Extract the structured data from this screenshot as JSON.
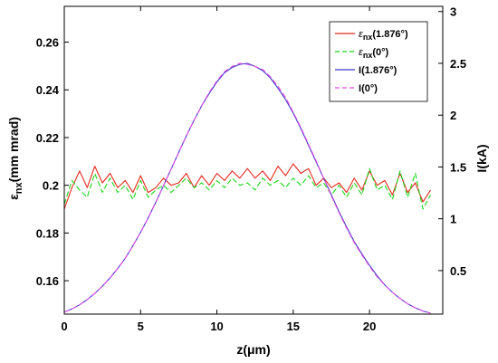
{
  "chart_data": {
    "type": "line",
    "xlabel": "z(μm)",
    "ylabel_left": "εnx(mm mrad)",
    "ylabel_right": "I(kA)",
    "xlim": [
      0,
      24.8
    ],
    "ylim_left": [
      0.146,
      0.275
    ],
    "ylim_right": [
      0.08,
      3.05
    ],
    "x_ticks": [
      "0",
      "5",
      "10",
      "15",
      "20"
    ],
    "y_left_ticks": [
      "0.16",
      "0.18",
      "0.2",
      "0.22",
      "0.24",
      "0.26"
    ],
    "y_right_ticks": [
      "0.5",
      "1",
      "1.5",
      "2",
      "2.5",
      "3"
    ],
    "legend": {
      "placement": "top-right",
      "entries": [
        {
          "symbol": "ε",
          "sub": "nx",
          "suffix": "(1.876°)"
        },
        {
          "symbol": "ε",
          "sub": "nx",
          "suffix": "(0°)"
        },
        {
          "symbol": "I",
          "sub": "",
          "suffix": "(1.876°)"
        },
        {
          "symbol": "I",
          "sub": "",
          "suffix": "(0°)"
        }
      ]
    },
    "series": [
      {
        "axis": "left",
        "color": "#e8281f",
        "dash": "",
        "x": [
          0,
          0.5,
          1,
          1.5,
          2,
          2.5,
          3,
          3.5,
          4,
          4.5,
          5,
          5.5,
          6,
          6.5,
          7,
          7.5,
          8,
          8.5,
          9,
          9.5,
          10,
          10.5,
          11,
          11.5,
          12,
          12.5,
          13,
          13.5,
          14,
          14.5,
          15,
          15.5,
          16,
          16.5,
          17,
          17.5,
          18,
          18.5,
          19,
          19.5,
          20,
          20.5,
          21,
          21.5,
          22,
          22.5,
          23,
          23.5,
          24
        ],
        "y": [
          0.19,
          0.199,
          0.206,
          0.199,
          0.208,
          0.201,
          0.205,
          0.199,
          0.202,
          0.197,
          0.204,
          0.197,
          0.199,
          0.203,
          0.2,
          0.201,
          0.205,
          0.199,
          0.204,
          0.2,
          0.205,
          0.202,
          0.206,
          0.203,
          0.207,
          0.203,
          0.206,
          0.202,
          0.208,
          0.204,
          0.209,
          0.205,
          0.207,
          0.2,
          0.203,
          0.199,
          0.201,
          0.197,
          0.203,
          0.198,
          0.206,
          0.2,
          0.202,
          0.196,
          0.205,
          0.197,
          0.201,
          0.193,
          0.198
        ]
      },
      {
        "axis": "left",
        "color": "#19d619",
        "dash": "6,3",
        "x": [
          0,
          0.5,
          1,
          1.5,
          2,
          2.5,
          3,
          3.5,
          4,
          4.5,
          5,
          5.5,
          6,
          6.5,
          7,
          7.5,
          8,
          8.5,
          9,
          9.5,
          10,
          10.5,
          11,
          11.5,
          12,
          12.5,
          13,
          13.5,
          14,
          14.5,
          15,
          15.5,
          16,
          16.5,
          17,
          17.5,
          18,
          18.5,
          19,
          19.5,
          20,
          20.5,
          21,
          21.5,
          22,
          22.5,
          23,
          23.5,
          24
        ],
        "y": [
          0.192,
          0.202,
          0.198,
          0.195,
          0.205,
          0.197,
          0.203,
          0.197,
          0.2,
          0.194,
          0.202,
          0.195,
          0.198,
          0.2,
          0.197,
          0.2,
          0.203,
          0.199,
          0.201,
          0.198,
          0.202,
          0.199,
          0.203,
          0.2,
          0.201,
          0.198,
          0.203,
          0.2,
          0.202,
          0.199,
          0.203,
          0.2,
          0.204,
          0.199,
          0.201,
          0.196,
          0.2,
          0.195,
          0.201,
          0.196,
          0.207,
          0.198,
          0.2,
          0.194,
          0.206,
          0.195,
          0.205,
          0.19,
          0.196
        ]
      },
      {
        "axis": "right",
        "color": "#3d35c9",
        "dash": "",
        "x": [
          0,
          0.5,
          1,
          1.5,
          2,
          2.5,
          3,
          3.5,
          4,
          4.5,
          5,
          5.5,
          6,
          6.5,
          7,
          7.5,
          8,
          8.5,
          9,
          9.5,
          10,
          10.5,
          11,
          11.5,
          12,
          12.5,
          13,
          13.5,
          14,
          14.5,
          15,
          15.5,
          16,
          16.5,
          17,
          17.5,
          18,
          18.5,
          19,
          19.5,
          20,
          20.5,
          21,
          21.5,
          22,
          22.5,
          23,
          23.5,
          24
        ],
        "y": [
          0.1,
          0.13,
          0.17,
          0.22,
          0.28,
          0.35,
          0.43,
          0.52,
          0.62,
          0.74,
          0.87,
          1.01,
          1.16,
          1.32,
          1.48,
          1.64,
          1.8,
          1.95,
          2.09,
          2.21,
          2.32,
          2.41,
          2.46,
          2.49,
          2.5,
          2.47,
          2.43,
          2.36,
          2.26,
          2.15,
          2.02,
          1.87,
          1.71,
          1.55,
          1.39,
          1.23,
          1.07,
          0.92,
          0.78,
          0.66,
          0.55,
          0.45,
          0.36,
          0.29,
          0.23,
          0.18,
          0.14,
          0.11,
          0.09
        ]
      },
      {
        "axis": "right",
        "color": "#e14ce1",
        "dash": "6,3",
        "x": [
          0,
          0.5,
          1,
          1.5,
          2,
          2.5,
          3,
          3.5,
          4,
          4.5,
          5,
          5.5,
          6,
          6.5,
          7,
          7.5,
          8,
          8.5,
          9,
          9.5,
          10,
          10.5,
          11,
          11.5,
          12,
          12.5,
          13,
          13.5,
          14,
          14.5,
          15,
          15.5,
          16,
          16.5,
          17,
          17.5,
          18,
          18.5,
          19,
          19.5,
          20,
          20.5,
          21,
          21.5,
          22,
          22.5,
          23,
          23.5,
          24
        ],
        "y": [
          0.1,
          0.13,
          0.17,
          0.22,
          0.28,
          0.35,
          0.43,
          0.52,
          0.62,
          0.74,
          0.87,
          1.01,
          1.16,
          1.32,
          1.48,
          1.64,
          1.8,
          1.95,
          2.09,
          2.22,
          2.33,
          2.42,
          2.47,
          2.5,
          2.49,
          2.47,
          2.44,
          2.37,
          2.28,
          2.17,
          2.03,
          1.88,
          1.72,
          1.56,
          1.39,
          1.22,
          1.06,
          0.91,
          0.77,
          0.65,
          0.54,
          0.44,
          0.36,
          0.29,
          0.23,
          0.18,
          0.14,
          0.11,
          0.09
        ]
      }
    ]
  }
}
